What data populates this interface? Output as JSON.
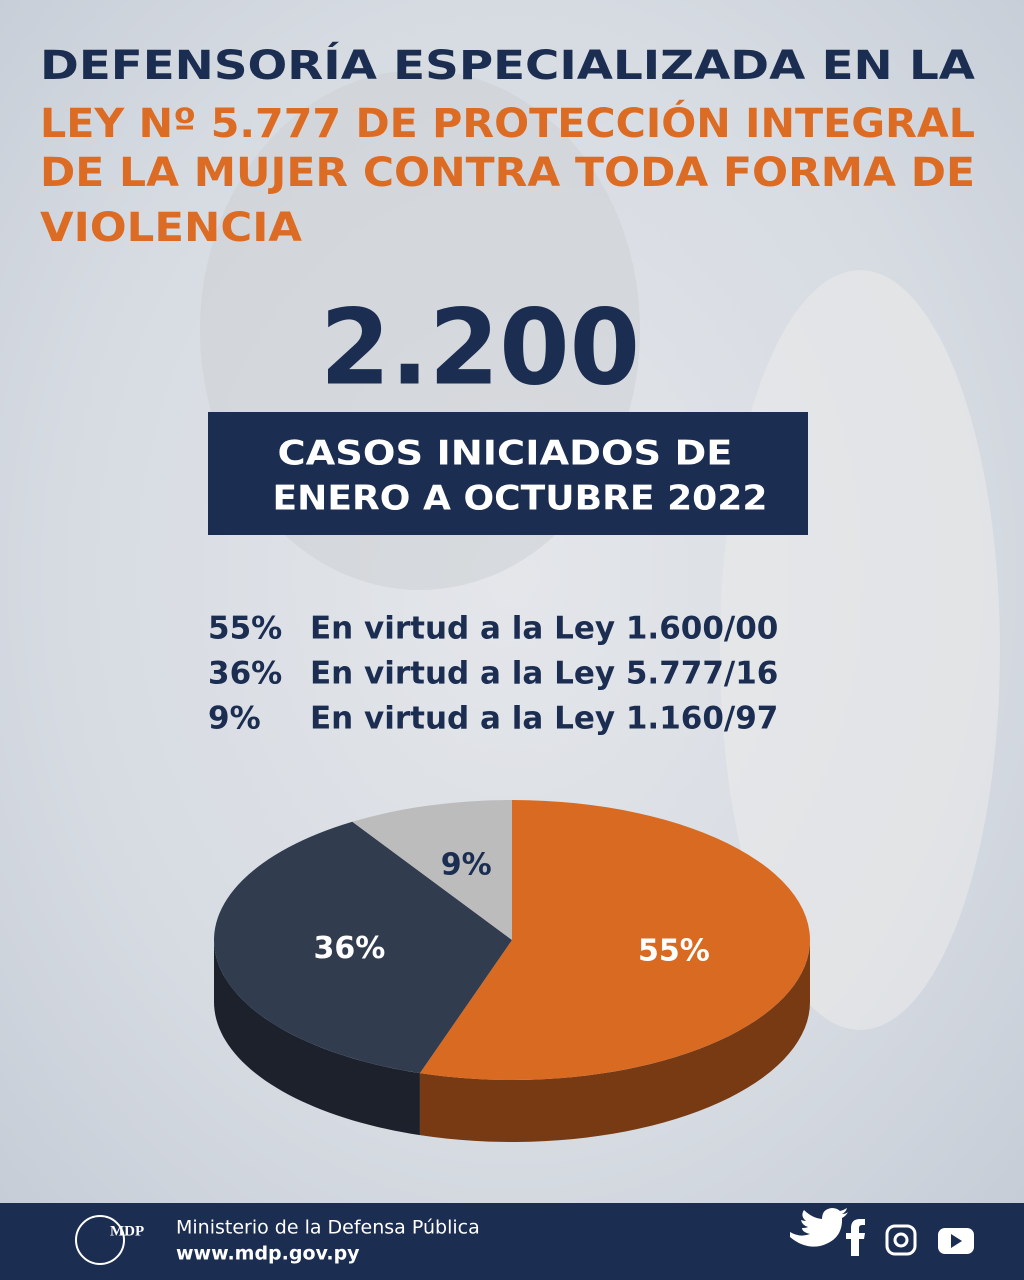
{
  "chart_data": {
    "type": "pie",
    "title": [
      "DEFENSORÍA ESPECIALIZADA EN LA",
      "LEY Nº 5.777 DE PROTECCIÓN INTEGRAL",
      "DE LA MUJER CONTRA TODA FORMA DE",
      "VIOLENCIA"
    ],
    "headline": "2.200",
    "subtitle": [
      "CASOS INICIADOS DE",
      "ENERO A OCTUBRE 2022"
    ],
    "categories": [
      "En virtud a la Ley 1.600/00",
      "En virtud a la Ley 5.777/16",
      "En virtud a la Ley 1.160/97"
    ],
    "values": [
      55,
      36,
      9
    ],
    "value_labels": [
      "55%",
      "36%",
      "9%"
    ],
    "colors": [
      "#d96a22",
      "#323c4f",
      "#bcbcbc"
    ],
    "footer": {
      "logo": "MDP",
      "organization": "Ministerio de la Defensa Pública",
      "website": "www.mdp.gov.py"
    }
  }
}
